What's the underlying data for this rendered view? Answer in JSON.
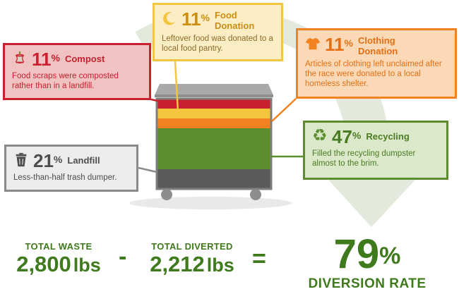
{
  "segments": [
    {
      "key": "compost",
      "name": "Compost",
      "percent": "11",
      "symbol": "%",
      "color": "#c8202e",
      "icon": "apple-core-icon",
      "description": "Food scraps were composted rather than in a landfill."
    },
    {
      "key": "food",
      "name": "Food Donation",
      "name_line1": "Food",
      "name_line2": "Donation",
      "percent": "11",
      "symbol": "%",
      "color": "#f4c63f",
      "icon": "crescent-moon-icon",
      "description": "Leftover food was donated to a local food pantry."
    },
    {
      "key": "clothing",
      "name": "Clothing Donation",
      "name_line1": "Clothing",
      "name_line2": "Donation",
      "percent": "11",
      "symbol": "%",
      "color": "#f2821f",
      "icon": "tshirt-icon",
      "description": "Articles of clothing left unclaimed after the race were donated to a local homeless shelter."
    },
    {
      "key": "recycling",
      "name": "Recycling",
      "percent": "47",
      "symbol": "%",
      "color": "#5b8d2e",
      "icon": "recycle-icon",
      "description": "Filled the recycling dumpster almost to the brim."
    },
    {
      "key": "landfill",
      "name": "Landfill",
      "percent": "21",
      "symbol": "%",
      "color": "#4e4e4e",
      "icon": "trash-can-icon",
      "description": "Less-than-half trash dumper."
    }
  ],
  "summary": {
    "total_waste_label": "TOTAL WASTE",
    "total_waste_value": "2,800",
    "total_diverted_label": "TOTAL DIVERTED",
    "total_diverted_value": "2,212",
    "unit": "lbs",
    "minus": "-",
    "equals": "=",
    "diversion_value": "79",
    "diversion_symbol": "%",
    "diversion_label": "DIVERSION RATE"
  },
  "colors": {
    "green_dark": "#3f7a1c",
    "arrow": "#e3e9dc",
    "bin_gray": "#9a9a9a"
  }
}
